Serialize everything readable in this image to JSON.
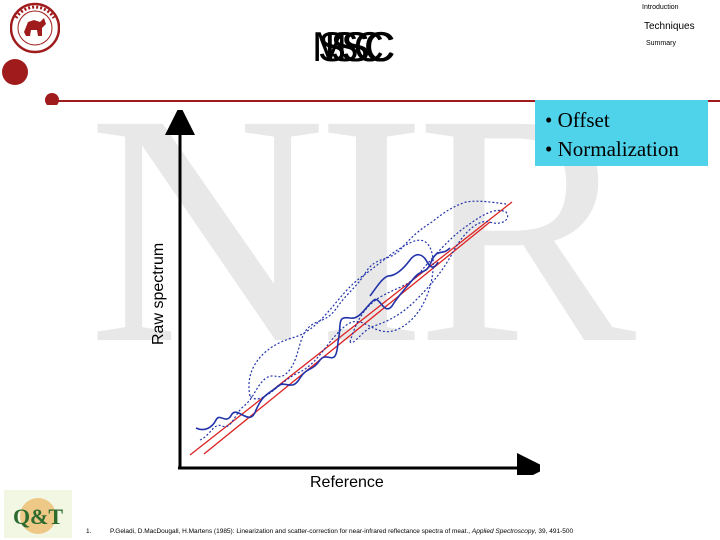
{
  "nav": {
    "introduction": "Introduction",
    "techniques": "Techniques",
    "summary": "Summary"
  },
  "title_overlays": [
    "MSC",
    "SSC",
    "ISC"
  ],
  "watermark": "NIR",
  "callout": {
    "items": [
      "• Offset",
      "• Normalization"
    ],
    "background": "#4fd3ea"
  },
  "diagram": {
    "xlabel": "Reference",
    "ylabel": "Raw spectrum"
  },
  "footnote": {
    "number": "1.",
    "text": "P.Geladi, D.MacDougall, H.Martens (1985): Linearization and scatter-correction for near-infrared reflectance spectra of meat., ",
    "journal": "Applied Spectroscopy",
    "tail": ", 39, 491-500"
  },
  "logos": {
    "seal": "university-seal",
    "qt_logo": "Q&T"
  },
  "colors": {
    "accent": "#a01c1c",
    "trace": "#2233aa",
    "regression": "#dd2222"
  }
}
